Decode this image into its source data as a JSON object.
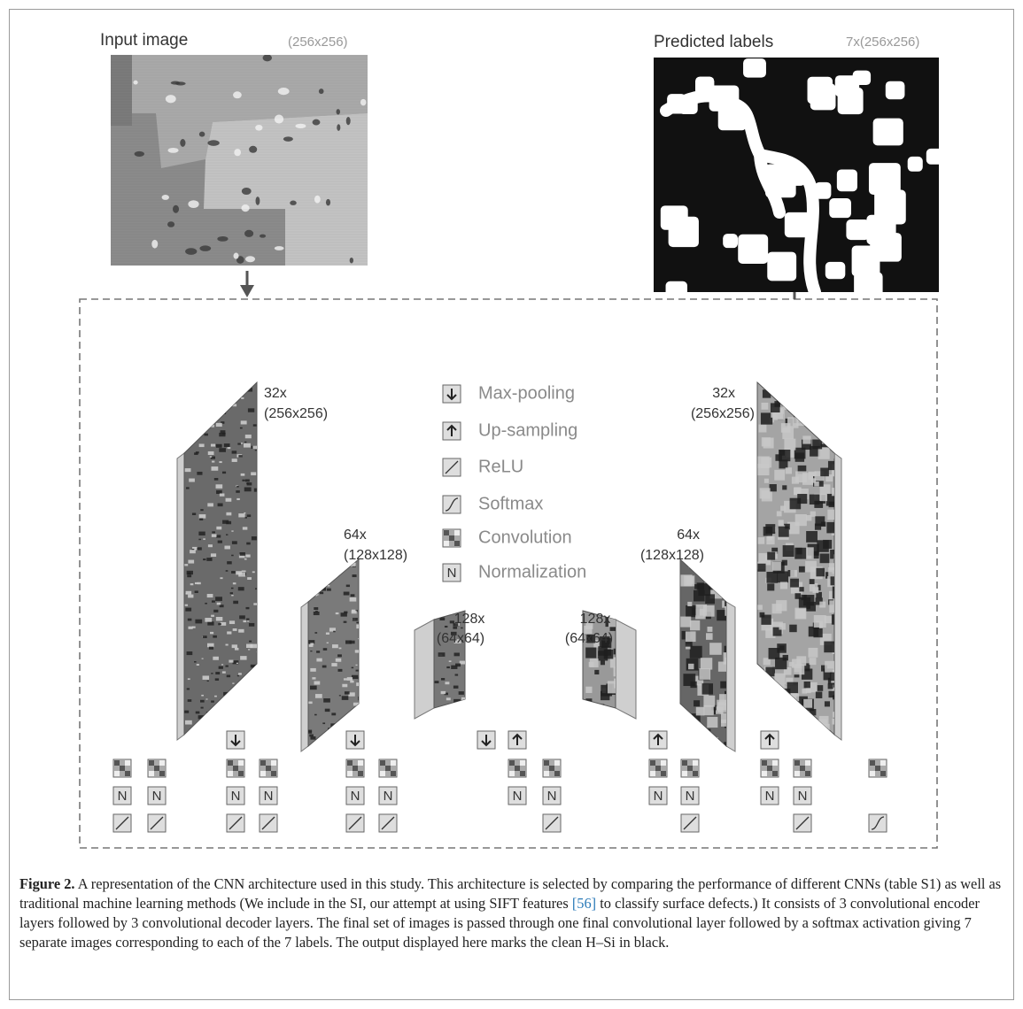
{
  "figure": {
    "input": {
      "label": "Input image",
      "size": "(256x256)"
    },
    "output": {
      "label": "Predicted labels",
      "size": "7x(256x256)"
    },
    "layers": [
      {
        "count": "32x",
        "size": "(256x256)"
      },
      {
        "count": "64x",
        "size": "(128x128)"
      },
      {
        "count": "128x",
        "size": "(64x64)"
      },
      {
        "count": "128x",
        "size": "(64x64)"
      },
      {
        "count": "64x",
        "size": "(128x128)"
      },
      {
        "count": "32x",
        "size": "(256x256)"
      }
    ],
    "legend": [
      "Max-pooling",
      "Up-sampling",
      "ReLU",
      "Softmax",
      "Convolution",
      "Normalization"
    ],
    "normalization_symbol": "N"
  },
  "caption": {
    "label": "Figure 2.",
    "text_before": "A representation of the CNN architecture used in this study. This architecture is selected by comparing the performance of different CNNs (table S1) as well as traditional machine learning methods (We include in the SI, our attempt at using SIFT features",
    "reference": "[56]",
    "text_after": "to classify surface defects.) It consists of 3 convolutional encoder layers followed by 3 convolutional decoder layers. The final set of images is passed through one final convolutional layer followed by a softmax activation giving 7 separate images corresponding to each of the 7 labels. The output displayed here marks the clean H–Si in black."
  }
}
